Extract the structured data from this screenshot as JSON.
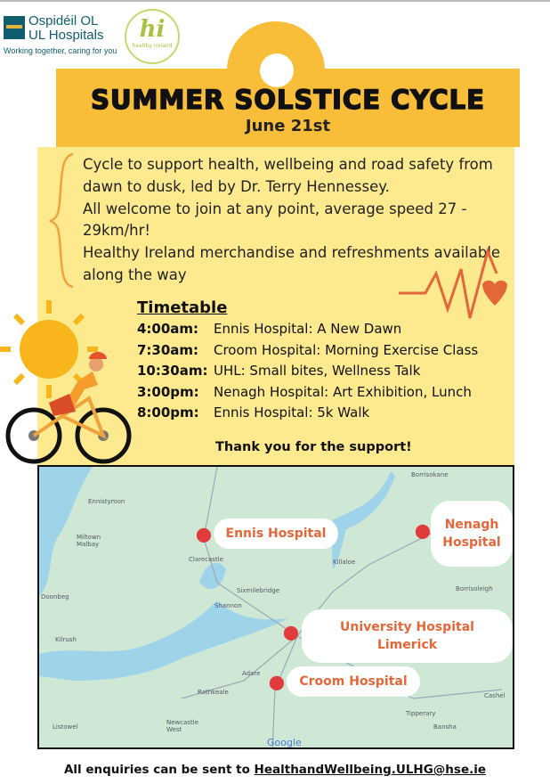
{
  "logos": {
    "ul_line1": "Ospidéil OL",
    "ul_line2": "UL Hospitals",
    "ul_tagline": "Working together, caring for you",
    "hi_mark": "hi",
    "hi_sub": "healthy ireland"
  },
  "header": {
    "title": "SUMMER SOLSTICE CYCLE",
    "date": "June 21st"
  },
  "description": [
    "Cycle to support health, wellbeing and road safety from dawn to dusk, led by Dr. Terry Hennessey.",
    "All welcome to join at any point, average speed 27 - 29km/hr!",
    "Healthy Ireland merchandise and refreshments available along the way"
  ],
  "timetable": {
    "heading": "Timetable",
    "rows": [
      {
        "time": "4:00am:",
        "event": "Ennis Hospital: A New Dawn"
      },
      {
        "time": "7:30am:",
        "event": "Croom Hospital: Morning Exercise Class"
      },
      {
        "time": "10:30am:",
        "event": "UHL: Small bites, Wellness Talk"
      },
      {
        "time": "3:00pm:",
        "event": "Nenagh Hospital: Art Exhibition, Lunch"
      },
      {
        "time": "8:00pm:",
        "event": "Ennis Hospital: 5k Walk"
      }
    ]
  },
  "thanks": "Thank you for the support!",
  "map": {
    "labels": [
      "Ennis Hospital",
      "Nenagh Hospital",
      "University Hospital Limerick",
      "Croom Hospital"
    ],
    "towns": [
      "Ennistymon",
      "Miltown Malbay",
      "Doonbeg",
      "Kilrush",
      "Listowel",
      "Newcastle West",
      "Rathkeale",
      "Adare",
      "Shannon",
      "Sixmilebridge",
      "Clarecastle",
      "Killaloe",
      "Borrisokane",
      "Borrisoleigh",
      "Tipperary",
      "Bansha",
      "Cashel"
    ],
    "attribution": "Google"
  },
  "footer": {
    "text": "All enquiries can be sent to ",
    "email": "HealthandWellbeing.ULHG@hse.ie"
  },
  "colors": {
    "banner": "#f8be3a",
    "panel": "#fde98e",
    "accent": "#e4673a"
  }
}
